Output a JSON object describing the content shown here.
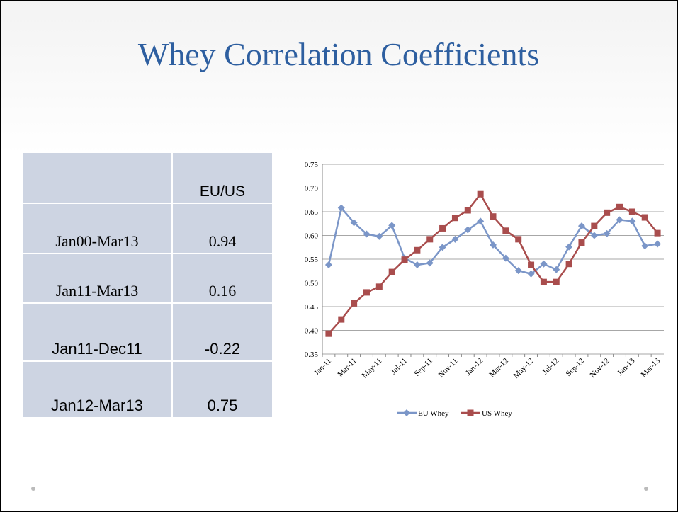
{
  "title": "Whey Correlation Coefficients",
  "table": {
    "header": "EU/US",
    "rows": [
      [
        "Jan00-Mar13",
        0.94
      ],
      [
        "Jan11-Mar13",
        0.16
      ],
      [
        "Jan11-Dec11",
        -0.22
      ],
      [
        "Jan12-Mar13",
        0.75
      ]
    ]
  },
  "chart_data": {
    "type": "line",
    "categories": [
      "Jan-11",
      null,
      "Mar-11",
      null,
      "May-11",
      null,
      "Jul-11",
      null,
      "Sep-11",
      null,
      "Nov-11",
      null,
      "Jan-12",
      null,
      "Mar-12",
      null,
      "May-12",
      null,
      "Jul-12",
      null,
      "Sep-12",
      null,
      "Nov-12",
      null,
      "Jan-13",
      null,
      "Mar-13"
    ],
    "series": [
      {
        "name": "EU Whey",
        "color": "#7b96c8",
        "marker": "diamond",
        "values": [
          0.538,
          0.658,
          0.627,
          0.603,
          0.598,
          0.621,
          0.552,
          0.538,
          0.542,
          0.575,
          0.592,
          0.612,
          0.63,
          0.58,
          0.552,
          0.526,
          0.519,
          0.54,
          0.528,
          0.576,
          0.62,
          0.6,
          0.604,
          0.633,
          0.63,
          0.578,
          0.582
        ]
      },
      {
        "name": "US Whey",
        "color": "#a94d4d",
        "marker": "square",
        "values": [
          0.393,
          0.423,
          0.457,
          0.48,
          0.492,
          0.523,
          0.549,
          0.569,
          0.592,
          0.615,
          0.637,
          0.653,
          0.687,
          0.64,
          0.61,
          0.592,
          0.538,
          0.502,
          0.502,
          0.54,
          0.585,
          0.62,
          0.648,
          0.66,
          0.65,
          0.638,
          0.605
        ]
      }
    ],
    "ylim": [
      0.35,
      0.75
    ],
    "yticks": [
      0.35,
      {
        "value": 0.4,
        "label": "0.40"
      },
      0.45,
      {
        "value": 0.5,
        "label": "0.50"
      },
      0.55,
      {
        "value": 0.6,
        "label": "0.60"
      },
      0.65,
      {
        "value": 0.7,
        "label": "0.70"
      },
      0.75
    ],
    "grid": true,
    "legend": "bottom"
  }
}
